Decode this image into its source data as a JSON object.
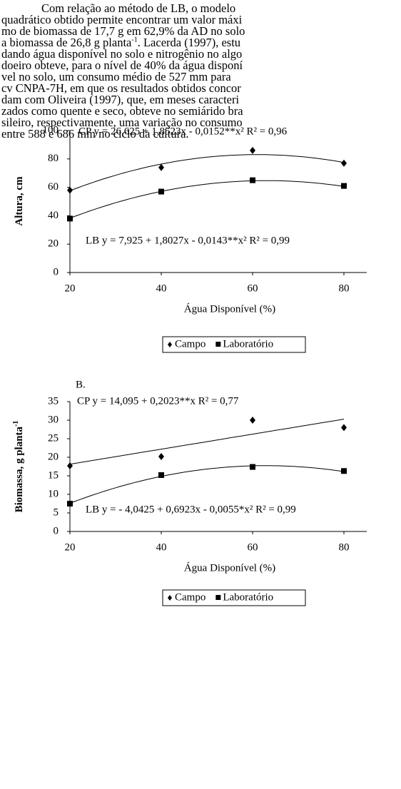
{
  "paragraph": {
    "lines": [
      [
        "Com relação ao método de LB, o modelo"
      ],
      [
        "quadrático obtido permite encontrar um valor máxi"
      ],
      [
        "mo de biomassa de 17,7 g em 62,9% da AD no solo"
      ],
      [
        "a biomassa de 26,8 g planta",
        "-1",
        ". Lacerda (1997), estu"
      ],
      [
        "dando água disponível no solo e nitrogênio no algo"
      ],
      [
        "doeiro obteve, para o nível de 40% da água disponí"
      ],
      [
        "vel no solo, um consumo médio de 527 mm para"
      ],
      [
        "cv CNPA-7H, em que os resultados obtidos concor"
      ],
      [
        "dam com Oliveira (1997), que, em meses caracteri"
      ],
      [
        "zados como quente e seco, obteve no semiárido bra"
      ],
      [
        "sileiro, respectivamente, uma variação no consumo"
      ],
      [
        "entre 588 e 686 mm no ciclo da cultura."
      ]
    ]
  },
  "chart_data": [
    {
      "type": "scatter",
      "x_label": "Água Disponível (%)",
      "y_label": [
        "Altura, cm"
      ],
      "x": [
        20,
        40,
        60,
        80
      ],
      "xlim": [
        20,
        85
      ],
      "xticks": [
        20,
        40,
        60,
        80
      ],
      "ylim": [
        0,
        100
      ],
      "yticks": [
        0,
        20,
        40,
        60,
        80,
        100
      ],
      "annotations": [
        "CP y = 26,625 + 1,8523x - 0,0152**x²   R² = 0,96",
        "LB y = 7,925 + 1,8027x - 0,0143**x²   R² = 0,99"
      ],
      "series": [
        {
          "name": "Campo",
          "marker": "diamond",
          "color": "#000",
          "values": [
            58,
            74,
            86,
            77
          ],
          "trend": [
            26.625,
            1.8523,
            -0.0152
          ]
        },
        {
          "name": "Laboratório",
          "marker": "square",
          "color": "#000",
          "values": [
            38,
            57,
            65,
            61
          ],
          "trend": [
            7.925,
            1.8027,
            -0.0143
          ]
        }
      ]
    },
    {
      "type": "scatter",
      "panel": "B.",
      "x_label": "Água Disponível (%)",
      "y_label": [
        "Biomassa, g planta",
        "-1"
      ],
      "x": [
        20,
        40,
        60,
        80
      ],
      "xlim": [
        20,
        85
      ],
      "xticks": [
        20,
        40,
        60,
        80
      ],
      "ylim": [
        0,
        35
      ],
      "yticks": [
        0,
        5,
        10,
        15,
        20,
        25,
        30,
        35
      ],
      "annotations": [
        "CP y = 14,095 + 0,2023**x  R² = 0,77",
        "LB y = - 4,0425 + 0,6923x - 0,0055*x²   R² = 0,99"
      ],
      "series": [
        {
          "name": "Campo",
          "marker": "diamond",
          "color": "#000",
          "values": [
            17.7,
            20.2,
            30,
            28
          ],
          "trend": [
            14.095,
            0.2023
          ]
        },
        {
          "name": "Laboratório",
          "marker": "square",
          "color": "#000",
          "values": [
            7.5,
            15.2,
            17.4,
            16.3
          ],
          "trend": [
            -4.0425,
            0.6923,
            -0.0055
          ]
        }
      ]
    }
  ]
}
